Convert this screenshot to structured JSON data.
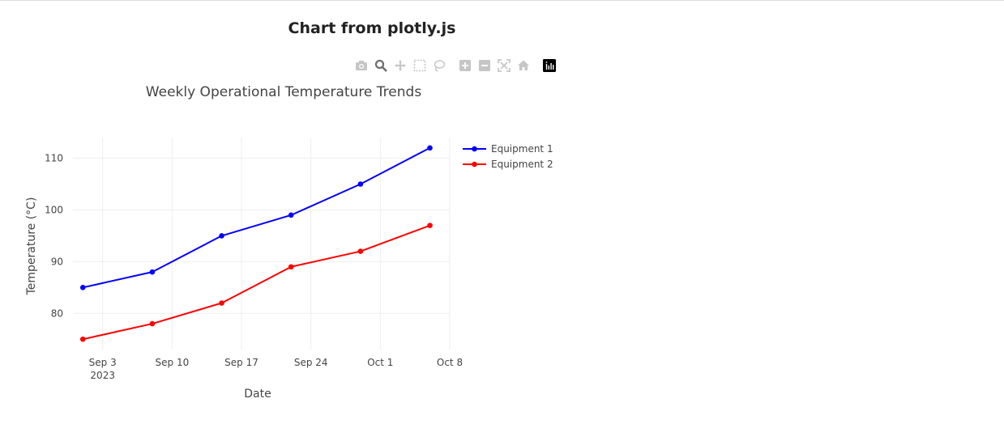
{
  "page": {
    "heading": "Chart from plotly.js"
  },
  "modebar": {
    "buttons": [
      {
        "icon": "camera-icon",
        "name": "download-plot-button"
      },
      {
        "icon": "zoom-icon",
        "name": "zoom-button"
      },
      {
        "icon": "pan-icon",
        "name": "pan-button"
      },
      {
        "icon": "box-select-icon",
        "name": "box-select-button"
      },
      {
        "icon": "lasso-icon",
        "name": "lasso-select-button"
      },
      {
        "icon": "zoom-in-icon",
        "name": "zoom-in-button"
      },
      {
        "icon": "zoom-out-icon",
        "name": "zoom-out-button"
      },
      {
        "icon": "autoscale-icon",
        "name": "autoscale-button"
      },
      {
        "icon": "home-icon",
        "name": "reset-axes-button"
      },
      {
        "icon": "plotly-logo-icon",
        "name": "plotly-logo-button"
      }
    ],
    "colors": {
      "icon": "#c6c6c6",
      "active": "#6e6e6e",
      "logo_bg": "#000000"
    }
  },
  "chart_data": {
    "type": "line",
    "title": "Weekly Operational Temperature Trends",
    "xlabel": "Date",
    "ylabel": "Temperature (°C)",
    "x": [
      "2023-09-01",
      "2023-09-08",
      "2023-09-15",
      "2023-09-22",
      "2023-09-29",
      "2023-10-06"
    ],
    "series": [
      {
        "name": "Equipment 1",
        "color": "#0000ff",
        "values": [
          85,
          88,
          95,
          99,
          105,
          112
        ]
      },
      {
        "name": "Equipment 2",
        "color": "#ff0000",
        "values": [
          75,
          78,
          82,
          89,
          92,
          97
        ]
      }
    ],
    "xlim": [
      "2023-08-31",
      "2023-10-08"
    ],
    "ylim": [
      73,
      114
    ],
    "x_ticks": [
      {
        "date": "2023-09-03",
        "label": "Sep 3",
        "sublabel": "2023"
      },
      {
        "date": "2023-09-10",
        "label": "Sep 10"
      },
      {
        "date": "2023-09-17",
        "label": "Sep 17"
      },
      {
        "date": "2023-09-24",
        "label": "Sep 24"
      },
      {
        "date": "2023-10-01",
        "label": "Oct 1"
      },
      {
        "date": "2023-10-08",
        "label": "Oct 8"
      }
    ],
    "y_ticks": [
      80,
      90,
      100,
      110
    ],
    "grid": true,
    "legend": "top-right"
  }
}
